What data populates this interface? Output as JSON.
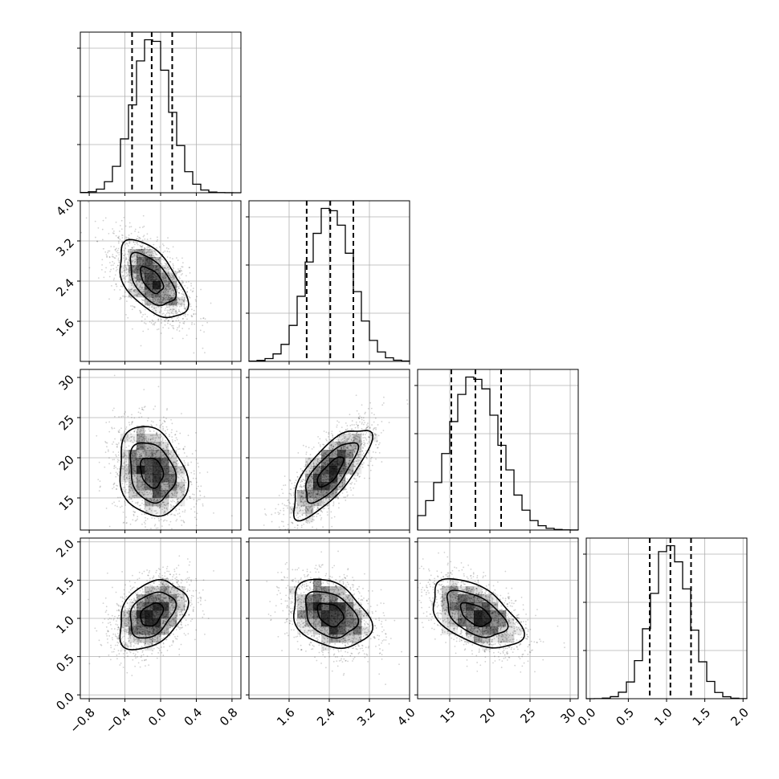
{
  "chart_data": {
    "type": "corner",
    "parameters": [
      {
        "range": [
          -0.9,
          0.9
        ],
        "ticks": [
          -0.8,
          -0.4,
          0.0,
          0.4,
          0.8
        ],
        "tick_labels": [
          "−0.8",
          "−0.4",
          "0.0",
          "0.4",
          "0.8"
        ],
        "mean": -0.1,
        "sd": 0.21,
        "quantiles": [
          -0.32,
          -0.1,
          0.13
        ]
      },
      {
        "range": [
          0.8,
          4.0
        ],
        "ticks": [
          1.6,
          2.4,
          3.2,
          4.0
        ],
        "tick_labels": [
          "1.6",
          "2.4",
          "3.2",
          "4.0"
        ],
        "mean": 2.42,
        "sd": 0.43,
        "quantiles": [
          1.95,
          2.42,
          2.88
        ]
      },
      {
        "range": [
          11.0,
          31.0
        ],
        "ticks": [
          15,
          20,
          25,
          30
        ],
        "tick_labels": [
          "15",
          "20",
          "25",
          "30"
        ],
        "mean": 18.2,
        "sd": 3.1,
        "quantiles": [
          15.2,
          18.2,
          21.4
        ]
      },
      {
        "range": [
          -0.05,
          2.05
        ],
        "ticks": [
          0.0,
          0.5,
          1.0,
          1.5,
          2.0
        ],
        "tick_labels": [
          "0.0",
          "0.5",
          "1.0",
          "1.5",
          "2.0"
        ],
        "mean": 1.05,
        "sd": 0.25,
        "quantiles": [
          0.78,
          1.05,
          1.32
        ]
      }
    ],
    "y_tick_labels_first_column": {
      "row1": [
        "1.6",
        "2.4",
        "3.2",
        "4.0"
      ],
      "row2": [
        "15",
        "20",
        "25",
        "30"
      ],
      "row3": [
        "0.0",
        "0.5",
        "1.0",
        "1.5",
        "2.0"
      ]
    },
    "correlations": {
      "0-1": -0.55,
      "0-2": -0.2,
      "1-2": 0.75,
      "0-3": 0.35,
      "1-3": -0.3,
      "2-3": -0.5
    },
    "histogram_bins": 20,
    "contour_levels": 3,
    "grid": true,
    "colors": {
      "line": "#000000",
      "grid": "#b0b0b0",
      "density": "#000000"
    }
  }
}
